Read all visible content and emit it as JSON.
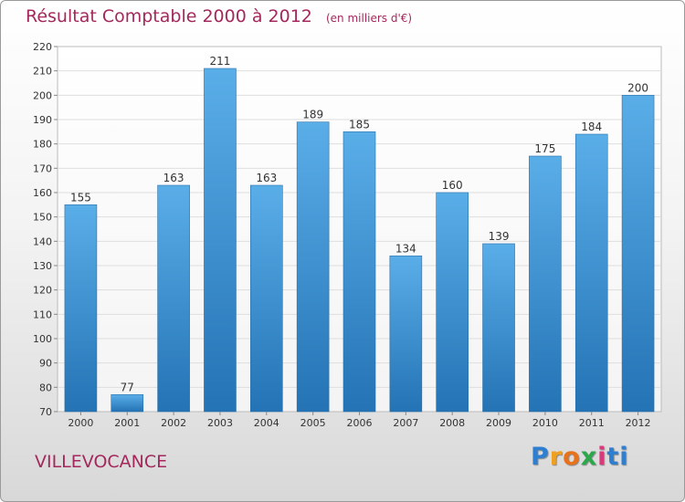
{
  "chart_data": {
    "type": "bar",
    "title": "Résultat Comptable 2000 à 2012",
    "unit_note": "(en milliers d'€)",
    "categories": [
      "2000",
      "2001",
      "2002",
      "2003",
      "2004",
      "2005",
      "2006",
      "2007",
      "2008",
      "2009",
      "2010",
      "2011",
      "2012"
    ],
    "values": [
      155,
      77,
      163,
      211,
      163,
      189,
      185,
      134,
      160,
      139,
      175,
      184,
      200
    ],
    "ylim": [
      70,
      220
    ],
    "yticks": [
      70,
      80,
      90,
      100,
      110,
      120,
      130,
      140,
      150,
      160,
      170,
      180,
      190,
      200,
      210,
      220
    ],
    "xlabel": "",
    "ylabel": "",
    "grid": true
  },
  "location": "VILLEVOCANCE",
  "brand": {
    "letters": [
      "P",
      "r",
      "o",
      "x",
      "i",
      "ti"
    ]
  },
  "colors": {
    "bar_top": "#5aaee8",
    "bar_bottom": "#2473b5",
    "title": "#a4285c"
  }
}
